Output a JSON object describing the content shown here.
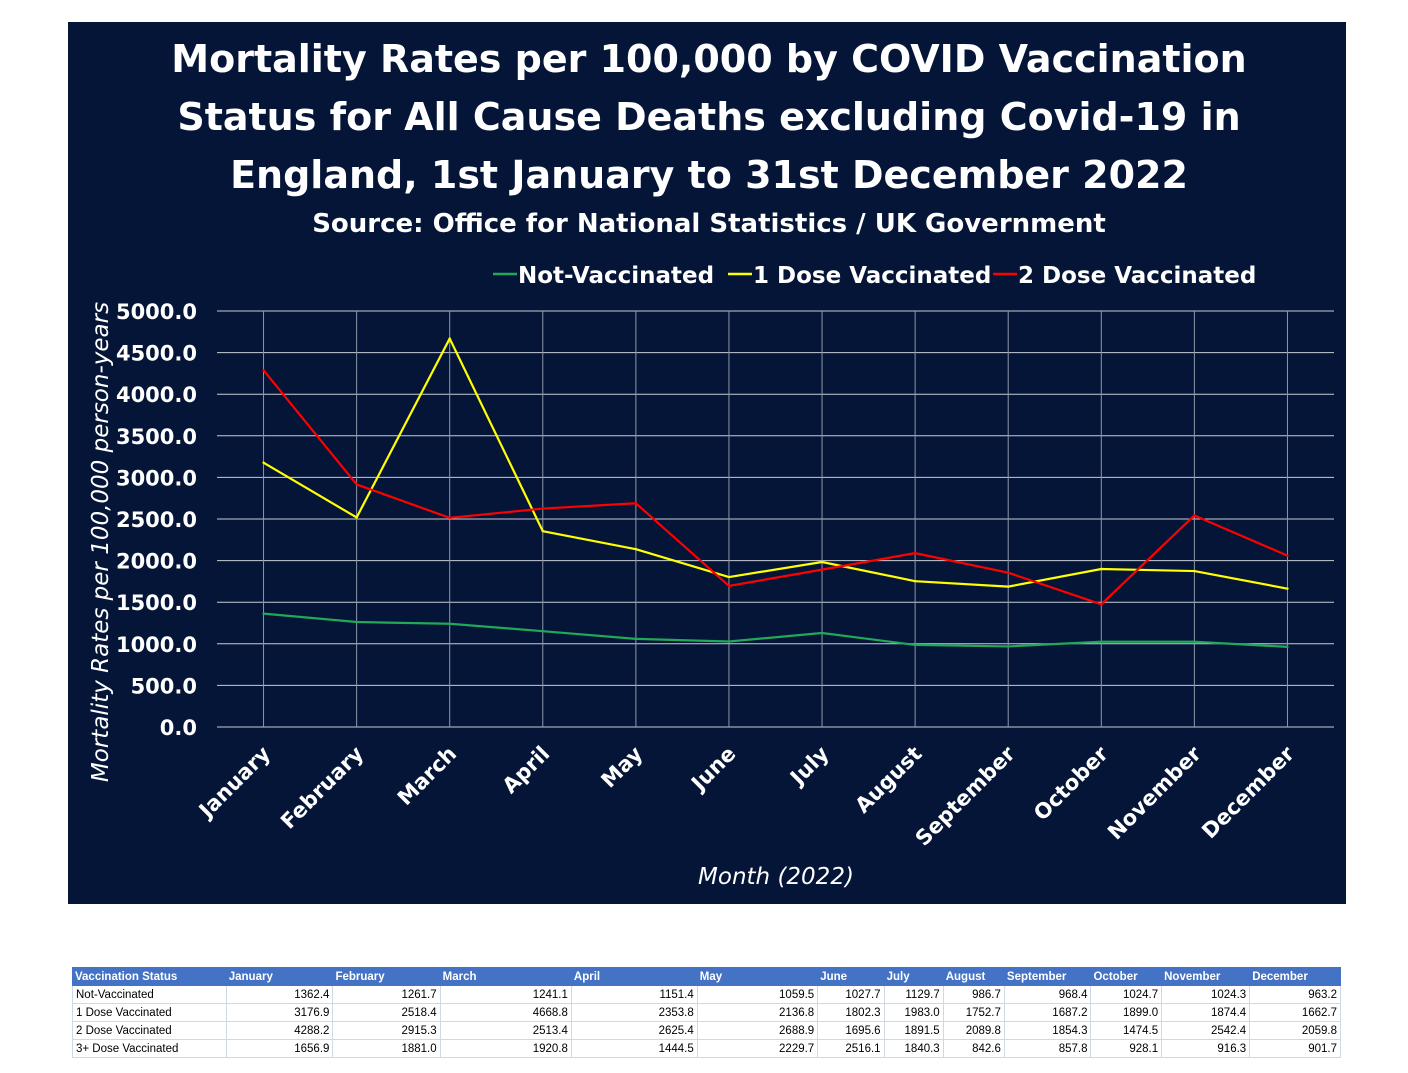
{
  "chart_data": {
    "type": "line",
    "title_lines": [
      "Mortality Rates per 100,000 by COVID Vaccination",
      "Status for All Cause Deaths excluding Covid-19 in",
      "England, 1st January to 31st December 2022"
    ],
    "subtitle": "Source: Office for National Statistics / UK Government",
    "xlabel": "Month (2022)",
    "ylabel": "Mortality Rates per 100,000 person-years",
    "categories": [
      "January",
      "February",
      "March",
      "April",
      "May",
      "June",
      "July",
      "August",
      "September",
      "October",
      "November",
      "December"
    ],
    "ylim": [
      0,
      5000
    ],
    "yticks": [
      "0.0",
      "500.0",
      "1000.0",
      "1500.0",
      "2000.0",
      "2500.0",
      "3000.0",
      "3500.0",
      "4000.0",
      "4500.0",
      "5000.0"
    ],
    "grid": true,
    "legend_position": "top",
    "background": "#051537",
    "series": [
      {
        "name": "Not-Vaccinated",
        "color": "#21a85a",
        "values": [
          1362.4,
          1261.7,
          1241.1,
          1151.4,
          1059.5,
          1027.7,
          1129.7,
          986.7,
          968.4,
          1024.7,
          1024.3,
          963.2
        ]
      },
      {
        "name": "1 Dose Vaccinated",
        "color": "#ffff00",
        "values": [
          3176.9,
          2518.4,
          4668.8,
          2353.8,
          2136.8,
          1802.3,
          1983.0,
          1752.7,
          1687.2,
          1899.0,
          1874.4,
          1662.7
        ]
      },
      {
        "name": "2 Dose Vaccinated",
        "color": "#ff0000",
        "values": [
          4288.2,
          2915.3,
          2513.4,
          2625.4,
          2688.9,
          1695.6,
          1891.5,
          2089.8,
          1854.3,
          1474.5,
          2542.4,
          2059.8
        ]
      }
    ]
  },
  "table": {
    "headers": [
      "Vaccination Status",
      "January",
      "February",
      "March",
      "April",
      "May",
      "June",
      "July",
      "August",
      "September",
      "October",
      "November",
      "December"
    ],
    "rows": [
      [
        "Not-Vaccinated",
        "1362.4",
        "1261.7",
        "1241.1",
        "1151.4",
        "1059.5",
        "1027.7",
        "1129.7",
        "986.7",
        "968.4",
        "1024.7",
        "1024.3",
        "963.2"
      ],
      [
        "1 Dose Vaccinated",
        "3176.9",
        "2518.4",
        "4668.8",
        "2353.8",
        "2136.8",
        "1802.3",
        "1983.0",
        "1752.7",
        "1687.2",
        "1899.0",
        "1874.4",
        "1662.7"
      ],
      [
        "2 Dose Vaccinated",
        "4288.2",
        "2915.3",
        "2513.4",
        "2625.4",
        "2688.9",
        "1695.6",
        "1891.5",
        "2089.8",
        "1854.3",
        "1474.5",
        "2542.4",
        "2059.8"
      ],
      [
        "3+ Dose Vaccinated",
        "1656.9",
        "1881.0",
        "1920.8",
        "1444.5",
        "2229.7",
        "2516.1",
        "1840.3",
        "842.6",
        "857.8",
        "928.1",
        "916.3",
        "901.7"
      ]
    ]
  }
}
